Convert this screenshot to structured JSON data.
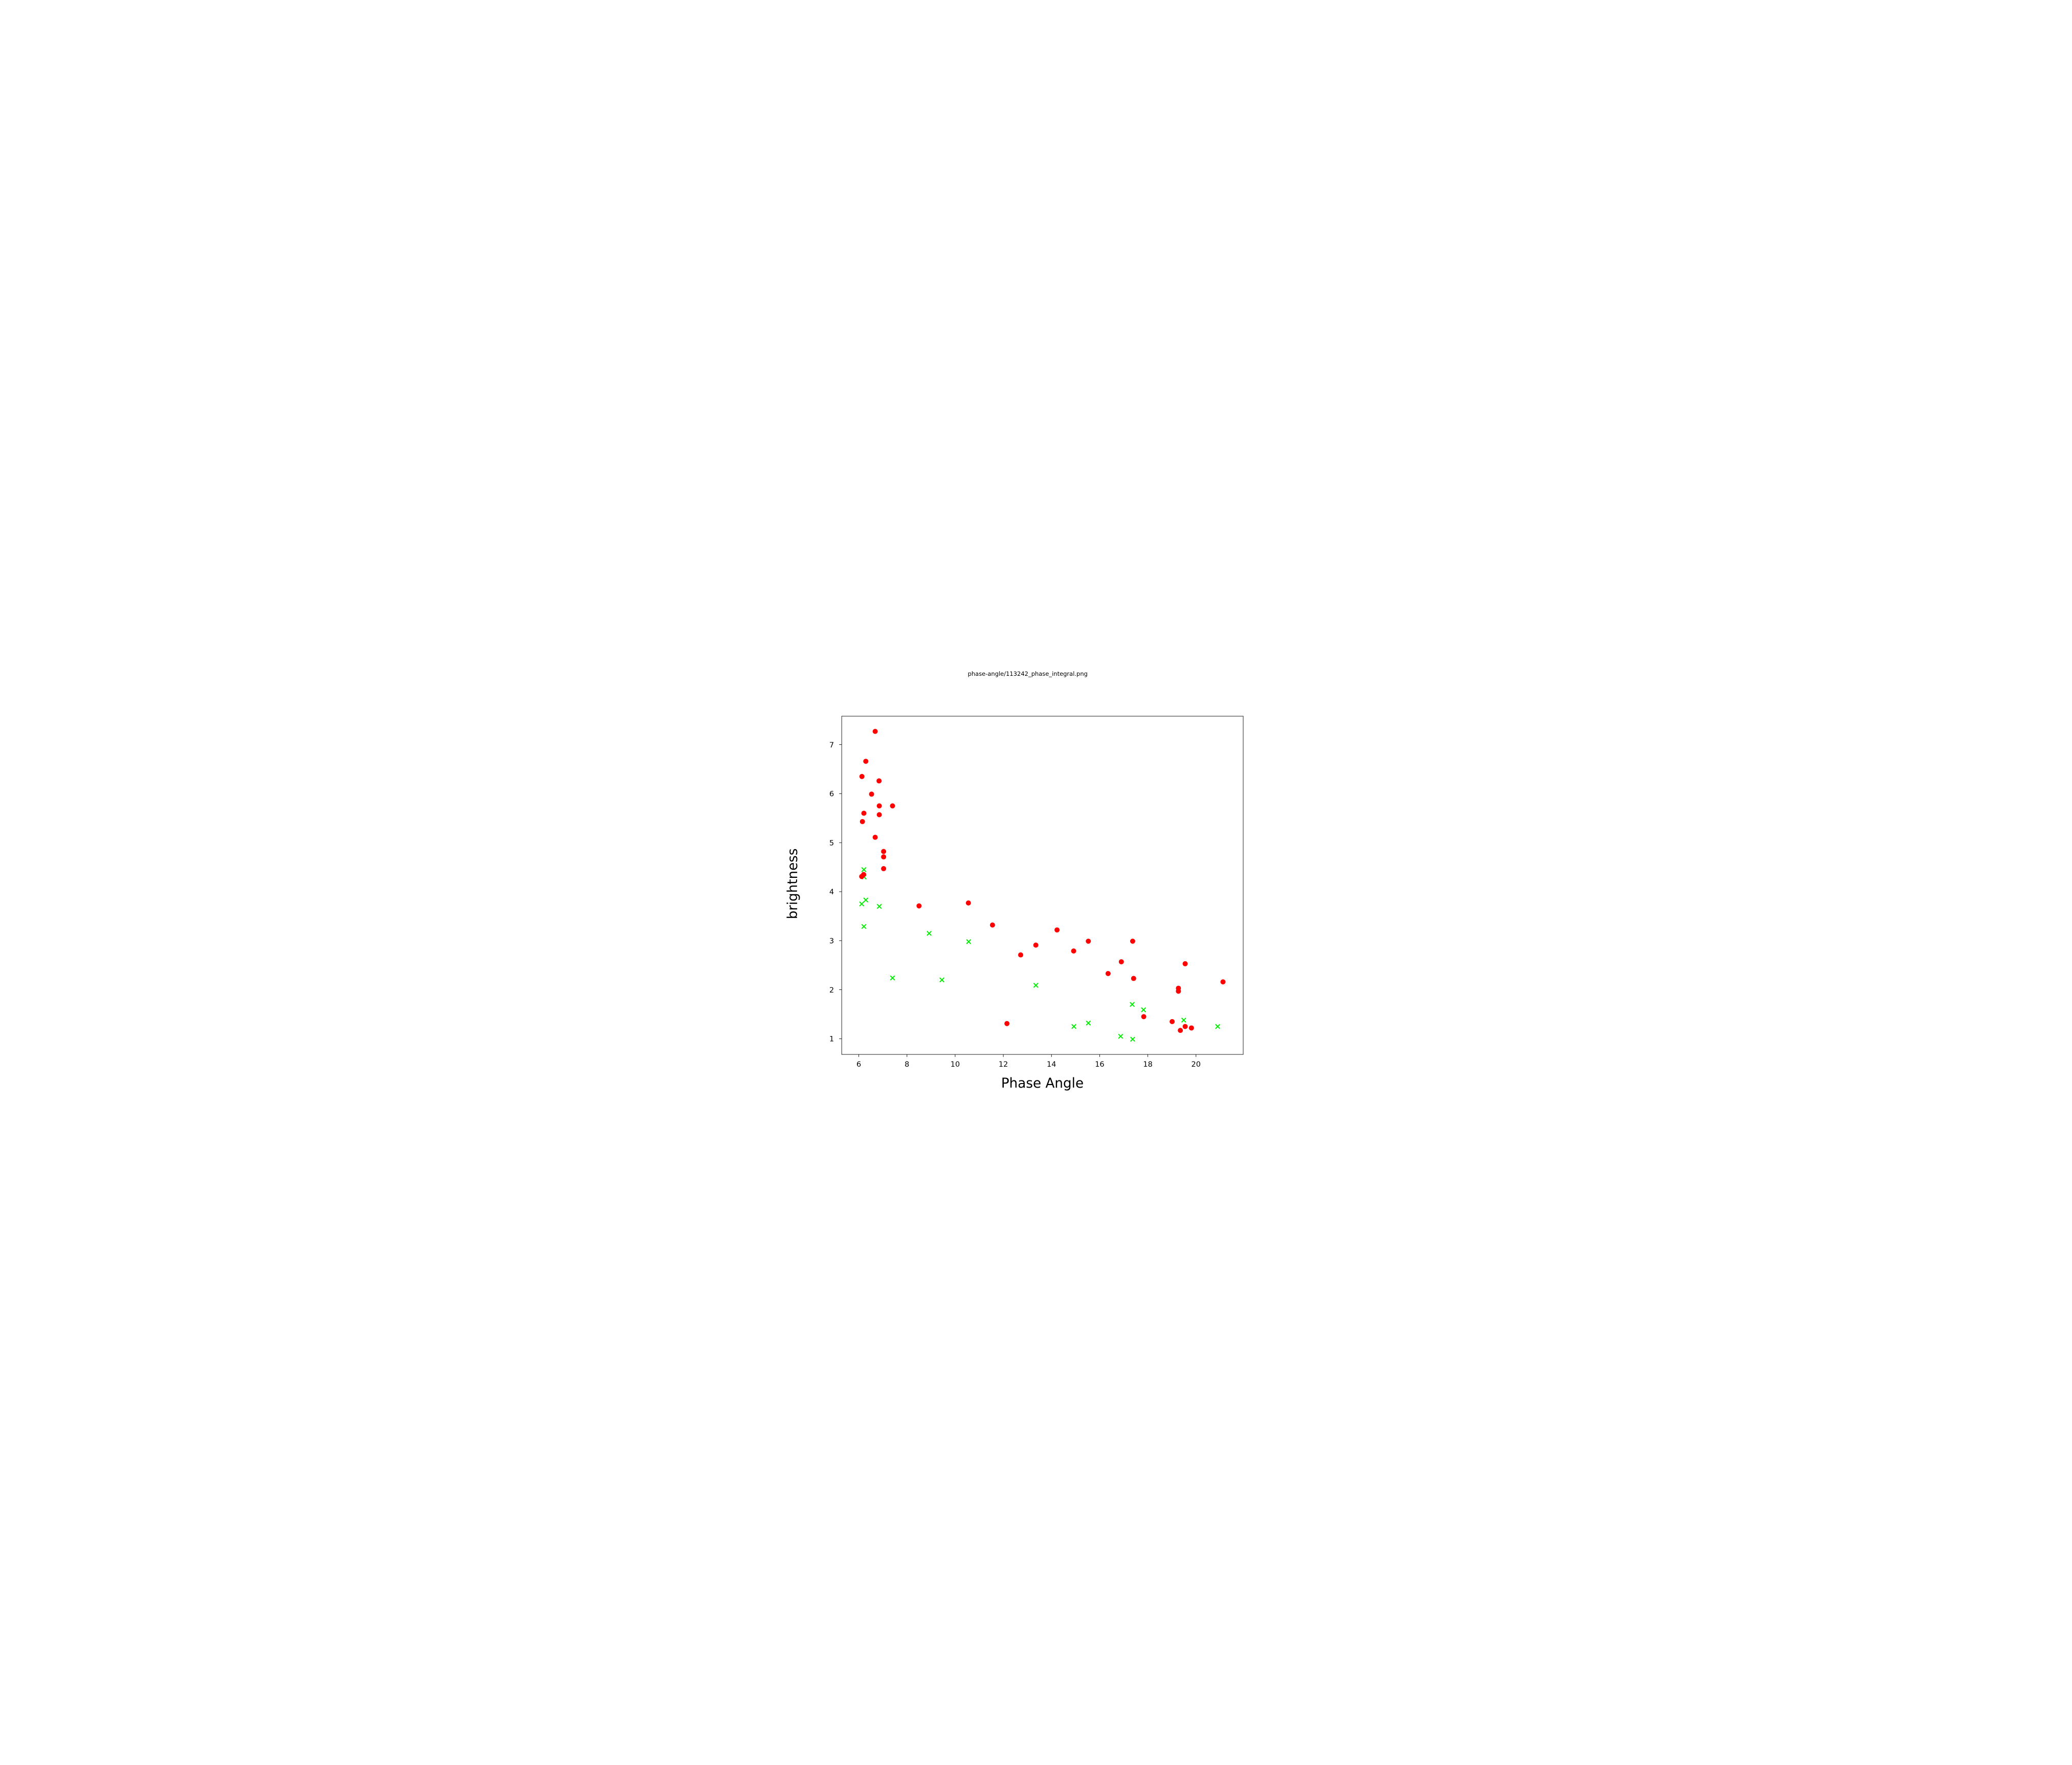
{
  "figure": {
    "title": "phase-angle/113242_phase_integral.png"
  },
  "chart_data": {
    "type": "scatter",
    "title": "phase-angle/113242_phase_integral.png",
    "xlabel": "Phase Angle",
    "ylabel": "brightness",
    "xlim": [
      5.29,
      21.96
    ],
    "ylim": [
      0.68,
      7.58
    ],
    "x_ticks": [
      6,
      8,
      10,
      12,
      14,
      16,
      18,
      20
    ],
    "y_ticks": [
      1,
      2,
      3,
      4,
      5,
      6,
      7
    ],
    "grid": false,
    "legend_position": "none",
    "series": [
      {
        "name": "green-crosses",
        "marker": "x",
        "color": "#00ee00",
        "points": [
          [
            6.21,
            4.45
          ],
          [
            6.22,
            4.3
          ],
          [
            6.29,
            3.83
          ],
          [
            6.12,
            3.75
          ],
          [
            6.85,
            3.7
          ],
          [
            6.21,
            3.29
          ],
          [
            8.92,
            3.15
          ],
          [
            10.56,
            2.98
          ],
          [
            7.4,
            2.24
          ],
          [
            9.45,
            2.2
          ],
          [
            13.35,
            2.09
          ],
          [
            17.35,
            1.7
          ],
          [
            17.82,
            1.59
          ],
          [
            15.53,
            1.32
          ],
          [
            14.93,
            1.25
          ],
          [
            16.87,
            1.05
          ],
          [
            17.37,
            0.99
          ],
          [
            19.49,
            1.38
          ],
          [
            20.9,
            1.25
          ]
        ]
      },
      {
        "name": "red-circles",
        "marker": "circle",
        "color": "#ff0000",
        "points": [
          [
            6.68,
            7.27
          ],
          [
            6.29,
            6.66
          ],
          [
            6.13,
            6.35
          ],
          [
            6.84,
            6.26
          ],
          [
            6.53,
            5.99
          ],
          [
            6.85,
            5.75
          ],
          [
            7.4,
            5.75
          ],
          [
            6.21,
            5.6
          ],
          [
            6.85,
            5.57
          ],
          [
            6.15,
            5.43
          ],
          [
            6.68,
            5.11
          ],
          [
            7.03,
            4.82
          ],
          [
            7.03,
            4.71
          ],
          [
            7.03,
            4.47
          ],
          [
            6.2,
            4.35
          ],
          [
            6.12,
            4.31
          ],
          [
            8.5,
            3.71
          ],
          [
            10.55,
            3.77
          ],
          [
            11.55,
            3.32
          ],
          [
            14.23,
            3.22
          ],
          [
            13.35,
            2.91
          ],
          [
            12.72,
            2.71
          ],
          [
            14.92,
            2.79
          ],
          [
            15.53,
            2.99
          ],
          [
            17.37,
            2.99
          ],
          [
            16.9,
            2.57
          ],
          [
            16.35,
            2.33
          ],
          [
            17.41,
            2.23
          ],
          [
            12.15,
            1.31
          ],
          [
            17.83,
            1.45
          ],
          [
            19.55,
            2.53
          ],
          [
            21.12,
            2.16
          ],
          [
            19.27,
            2.03
          ],
          [
            19.27,
            1.97
          ],
          [
            19.01,
            1.35
          ],
          [
            19.55,
            1.25
          ],
          [
            19.81,
            1.22
          ],
          [
            19.35,
            1.17
          ]
        ]
      }
    ]
  }
}
